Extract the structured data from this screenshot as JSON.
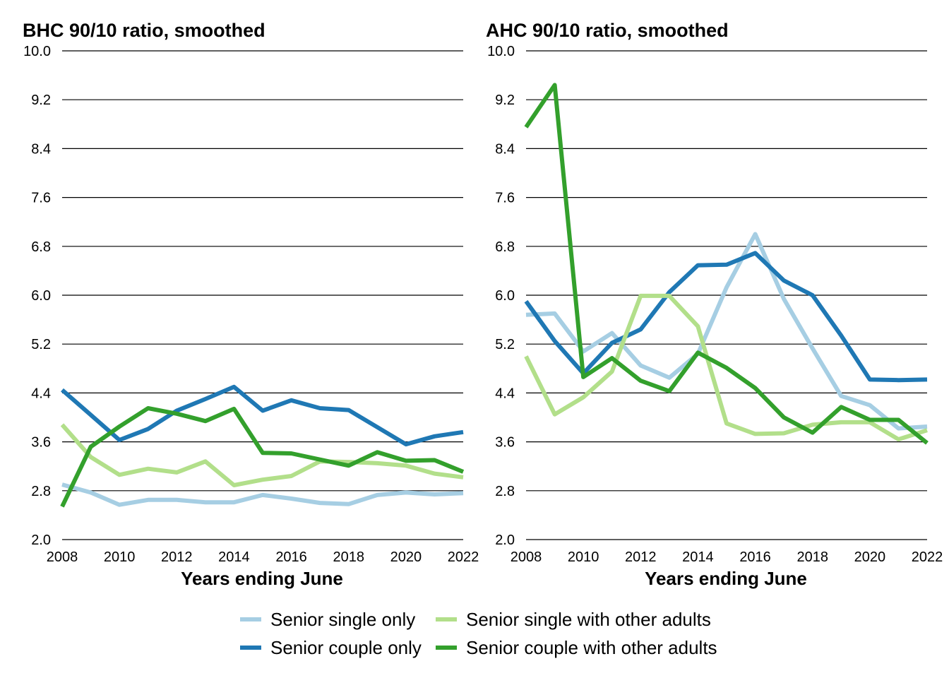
{
  "chart_data": [
    {
      "type": "line",
      "title": "BHC 90/10 ratio, smoothed",
      "xlabel": "Years ending June",
      "ylabel": "",
      "xlim": [
        2008,
        2022
      ],
      "ylim": [
        2.0,
        10.0
      ],
      "x_ticks": [
        "2008",
        "2010",
        "2012",
        "2014",
        "2016",
        "2018",
        "2020",
        "2022"
      ],
      "y_ticks": [
        "10.0",
        "9.2",
        "8.4",
        "7.6",
        "6.8",
        "6.0",
        "5.2",
        "4.4",
        "3.6",
        "2.8",
        "2.0"
      ],
      "grid": "horizontal",
      "x": [
        2008,
        2009,
        2010,
        2011,
        2012,
        2013,
        2014,
        2015,
        2016,
        2017,
        2018,
        2019,
        2020,
        2021,
        2022
      ],
      "series": [
        {
          "name": "Senior single only",
          "color": "#a6cee3",
          "values": [
            2.9,
            2.77,
            2.57,
            2.65,
            2.65,
            2.61,
            2.61,
            2.73,
            2.67,
            2.6,
            2.58,
            2.73,
            2.77,
            2.74,
            2.76
          ]
        },
        {
          "name": "Senior couple only",
          "color": "#1f78b4",
          "values": [
            4.45,
            4.04,
            3.63,
            3.81,
            4.11,
            4.3,
            4.5,
            4.11,
            4.28,
            4.15,
            4.12,
            3.84,
            3.56,
            3.69,
            3.76
          ]
        },
        {
          "name": "Senior single with other adults",
          "color": "#b2df8a",
          "values": [
            3.88,
            3.35,
            3.06,
            3.16,
            3.1,
            3.28,
            2.89,
            2.98,
            3.04,
            3.28,
            3.27,
            3.25,
            3.21,
            3.08,
            3.02
          ]
        },
        {
          "name": "Senior couple with other adults",
          "color": "#33a02c",
          "values": [
            2.54,
            3.52,
            3.85,
            4.15,
            4.06,
            3.94,
            4.14,
            3.42,
            3.41,
            3.31,
            3.21,
            3.43,
            3.29,
            3.3,
            3.11
          ]
        }
      ]
    },
    {
      "type": "line",
      "title": "AHC 90/10 ratio, smoothed",
      "xlabel": "Years ending June",
      "ylabel": "",
      "xlim": [
        2008,
        2022
      ],
      "ylim": [
        2.0,
        10.0
      ],
      "x_ticks": [
        "2008",
        "2010",
        "2012",
        "2014",
        "2016",
        "2018",
        "2020",
        "2022"
      ],
      "y_ticks": [
        "10.0",
        "9.2",
        "8.4",
        "7.6",
        "6.8",
        "6.0",
        "5.2",
        "4.4",
        "3.6",
        "2.8",
        "2.0"
      ],
      "grid": "horizontal",
      "x": [
        2008,
        2009,
        2010,
        2011,
        2012,
        2013,
        2014,
        2015,
        2016,
        2017,
        2018,
        2019,
        2020,
        2021,
        2022
      ],
      "series": [
        {
          "name": "Senior single only",
          "color": "#a6cee3",
          "values": [
            5.68,
            5.7,
            5.08,
            5.38,
            4.85,
            4.65,
            5.04,
            6.13,
            7.0,
            5.94,
            5.13,
            4.35,
            4.2,
            3.82,
            3.85
          ]
        },
        {
          "name": "Senior couple only",
          "color": "#1f78b4",
          "values": [
            5.9,
            5.25,
            4.72,
            5.22,
            5.44,
            6.05,
            6.49,
            6.5,
            6.69,
            6.24,
            6.0,
            5.34,
            4.62,
            4.61,
            4.62
          ]
        },
        {
          "name": "Senior single with other adults",
          "color": "#b2df8a",
          "values": [
            5.0,
            4.05,
            4.33,
            4.75,
            5.99,
            5.99,
            5.49,
            3.9,
            3.73,
            3.74,
            3.88,
            3.92,
            3.92,
            3.64,
            3.79
          ]
        },
        {
          "name": "Senior couple with other adults",
          "color": "#33a02c",
          "values": [
            8.75,
            9.44,
            4.66,
            4.97,
            4.6,
            4.43,
            5.06,
            4.81,
            4.48,
            4.0,
            3.75,
            4.17,
            3.96,
            3.96,
            3.58
          ]
        }
      ]
    }
  ],
  "legend": {
    "placement": "bottom-center",
    "items": [
      {
        "label": "Senior single only",
        "color": "#a6cee3"
      },
      {
        "label": "Senior single with other adults",
        "color": "#b2df8a"
      },
      {
        "label": "Senior couple only",
        "color": "#1f78b4"
      },
      {
        "label": "Senior couple with other adults",
        "color": "#33a02c"
      }
    ]
  }
}
